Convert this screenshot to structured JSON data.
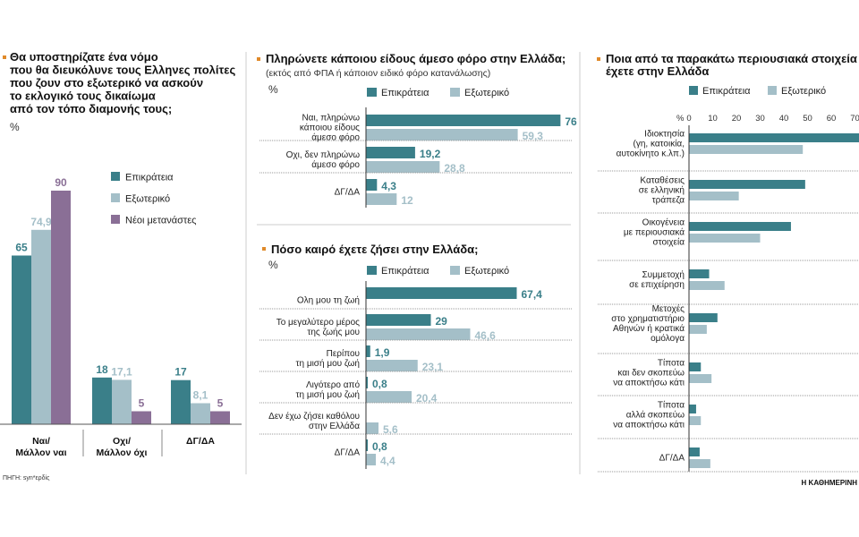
{
  "footer": {
    "source": "ΠΗΓΗ: syn*ερδίς",
    "brand": "Η ΚΑΘΗΜΕΡΙΝΗ"
  },
  "colors": {
    "epikrateia": "#3a7f89",
    "exoteriko": "#a4bfc8",
    "metanastes": "#8a6f96",
    "accent": "#e08a2a"
  },
  "chart_data": [
    {
      "type": "bar",
      "title": [
        "Θα υποστηρίζατε ένα νόμο",
        "που θα διευκόλυνε τους Ελληνες πολίτες",
        "που ζουν στο εξωτερικό να ασκούν",
        "το εκλογικό τους δικαίωμα",
        "από τον τόπο διαμονής τους;"
      ],
      "unit": "%",
      "categories": [
        [
          "Ναι/",
          "Μάλλον ναι"
        ],
        [
          "Οχι/",
          "Μάλλον όχι"
        ],
        [
          "ΔΓ/ΔΑ"
        ]
      ],
      "series": [
        {
          "name": "Επικράτεια",
          "values": [
            "65",
            "18",
            "17"
          ],
          "num": [
            65,
            18,
            17
          ]
        },
        {
          "name": "Εξωτερικό",
          "values": [
            "74,9",
            "17,1",
            "8,1"
          ],
          "num": [
            74.9,
            17.1,
            8.1
          ]
        },
        {
          "name": "Νέοι μετανάστες",
          "values": [
            "90",
            "5",
            "5"
          ],
          "num": [
            90,
            5,
            5
          ]
        }
      ]
    },
    {
      "type": "bar",
      "orientation": "horizontal",
      "title": "Πληρώνετε κάποιου είδους άμεσο φόρο στην Ελλάδα;",
      "subtitle": "(εκτός από ΦΠΑ ή κάποιον ειδικό φόρο κατανάλωσης)",
      "unit": "%",
      "legend": [
        "Επικράτεια",
        "Εξωτερικό"
      ],
      "categories": [
        [
          "Ναι, πληρώνω",
          "κάποιου είδους",
          "άμεσο φόρο"
        ],
        [
          "Οχι, δεν πληρώνω",
          "άμεσο φόρο"
        ],
        [
          "ΔΓ/ΔΑ"
        ]
      ],
      "series": [
        {
          "name": "Επικράτεια",
          "values": [
            "76",
            "19,2",
            "4,3"
          ],
          "num": [
            76,
            19.2,
            4.3
          ]
        },
        {
          "name": "Εξωτερικό",
          "values": [
            "59,3",
            "28,8",
            "12"
          ],
          "num": [
            59.3,
            28.8,
            12
          ]
        }
      ]
    },
    {
      "type": "bar",
      "orientation": "horizontal",
      "title": "Πόσο καιρό έχετε ζήσει στην Ελλάδα;",
      "unit": "%",
      "legend": [
        "Επικράτεια",
        "Εξωτερικό"
      ],
      "categories": [
        [
          "Ολη μου τη ζωή"
        ],
        [
          "Το μεγαλύτερο μέρος",
          "της ζωής μου"
        ],
        [
          "Περίπου",
          "τη μισή μου ζωή"
        ],
        [
          "Λιγότερο από",
          "τη μισή μου ζωή"
        ],
        [
          "Δεν έχω ζήσει καθόλου",
          "στην Ελλάδα"
        ],
        [
          "ΔΓ/ΔΑ"
        ]
      ],
      "series": [
        {
          "name": "Επικράτεια",
          "values": [
            "67,4",
            "29",
            "1,9",
            "0,8",
            "",
            "0,8"
          ],
          "num": [
            67.4,
            29,
            1.9,
            0.8,
            0,
            0.8
          ]
        },
        {
          "name": "Εξωτερικό",
          "values": [
            "",
            "46,6",
            "23,1",
            "20,4",
            "5,6",
            "4,4"
          ],
          "num": [
            0,
            46.6,
            23.1,
            20.4,
            5.6,
            4.4
          ]
        }
      ]
    },
    {
      "type": "bar",
      "orientation": "horizontal",
      "title": [
        "Ποια από τα παρακάτω περιουσιακά στοιχεία",
        "έχετε στην Ελλάδα"
      ],
      "unit": "%",
      "legend": [
        "Επικράτεια",
        "Εξωτερικό"
      ],
      "xticks": [
        "0",
        "10",
        "20",
        "30",
        "40",
        "50",
        "60",
        "70"
      ],
      "xlim": [
        0,
        70
      ],
      "categories": [
        [
          "Ιδιοκτησία",
          "(γη, κατοικία,",
          "αυτοκίνητο κ.λπ.)"
        ],
        [
          "Καταθέσεις",
          "σε ελληνική",
          "τράπεζα"
        ],
        [
          "Οικογένεια",
          "με περιουσιακά",
          "στοιχεία"
        ],
        [
          "Συμμετοχή",
          "σε επιχείρηση"
        ],
        [
          "Μετοχές",
          "στο χρηματιστήριο",
          "Αθηνών ή κρατικά",
          "ομόλογα"
        ],
        [
          "Τίποτα",
          "και δεν σκοπεύω",
          "να αποκτήσω κάτι"
        ],
        [
          "Τίποτα",
          "αλλά σκοπεύω",
          "να αποκτήσω κάτι"
        ],
        [
          "ΔΓ/ΔΑ"
        ]
      ],
      "series": [
        {
          "name": "Επικράτεια",
          "num": [
            74,
            49,
            43,
            8.5,
            12,
            5,
            3,
            4.5
          ]
        },
        {
          "name": "Εξωτερικό",
          "num": [
            48,
            21,
            30,
            15,
            7.5,
            9.5,
            5,
            9
          ]
        }
      ]
    }
  ]
}
